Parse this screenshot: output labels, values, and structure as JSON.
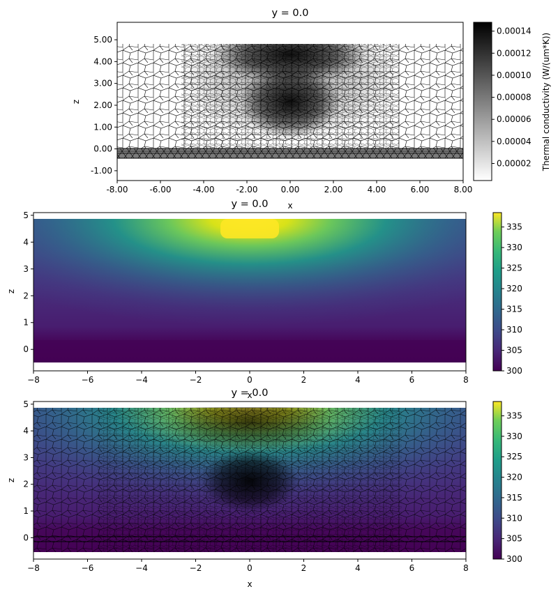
{
  "chart_data": [
    {
      "type": "heatmap",
      "title": "y = 0.0",
      "xlabel": "x",
      "ylabel": "z",
      "xlim": [
        -8,
        8
      ],
      "ylim": [
        -1.45,
        5.8
      ],
      "xticks": [
        "-8.00",
        "-6.00",
        "-4.00",
        "-2.00",
        "0.00",
        "2.00",
        "4.00",
        "6.00",
        "8.00"
      ],
      "yticks": [
        "-1.00",
        "0.00",
        "1.00",
        "2.00",
        "3.00",
        "4.00",
        "5.00"
      ],
      "colorbar": {
        "label": "Thermal conductivity (W/(um*K))",
        "range": [
          4.5e-06,
          0.000148
        ],
        "ticks": [
          "0.00002",
          "0.00004",
          "0.00006",
          "0.00008",
          "0.00010",
          "0.00012",
          "0.00014"
        ],
        "colormap": "gray_r"
      },
      "mesh": "triangular mesh, dense near (0, 4.5) and (0, 2), layered substrate z -0.45 to 0",
      "regions": [
        {
          "zmin": -0.45,
          "zmax": 0.0,
          "value": 7e-05
        },
        {
          "zmin": 0.0,
          "zmax": 4.8,
          "value": 4.5e-06
        }
      ]
    },
    {
      "type": "heatmap",
      "title": "y = 0.0",
      "xlabel": "x",
      "ylabel": "z",
      "xlim": [
        -8,
        8
      ],
      "ylim": [
        -0.8,
        5.1
      ],
      "xticks": [
        "−8",
        "−6",
        "−4",
        "−2",
        "0",
        "2",
        "4",
        "6",
        "8"
      ],
      "yticks": [
        "0",
        "1",
        "2",
        "3",
        "4",
        "5"
      ],
      "colorbar": {
        "label": "",
        "range": [
          300,
          338.5
        ],
        "ticks": [
          "300",
          "305",
          "310",
          "315",
          "320",
          "325",
          "330",
          "335"
        ],
        "colormap": "viridis"
      },
      "field": {
        "ambient": 300,
        "peak": 338.5,
        "hotspot_x": 0,
        "hotspot_z": 4.4,
        "hotspot_halfwidth": 1.1,
        "zmin": -0.5,
        "zmax": 4.8
      }
    },
    {
      "type": "heatmap",
      "title": "y = 0.0",
      "xlabel": "x",
      "ylabel": "z",
      "xlim": [
        -8,
        8
      ],
      "ylim": [
        -0.8,
        5.1
      ],
      "xticks": [
        "−8",
        "−6",
        "−4",
        "−2",
        "0",
        "2",
        "4",
        "6",
        "8"
      ],
      "yticks": [
        "0",
        "1",
        "2",
        "3",
        "4",
        "5"
      ],
      "colorbar": {
        "label": "",
        "range": [
          300,
          338.5
        ],
        "ticks": [
          "300",
          "305",
          "310",
          "315",
          "320",
          "325",
          "330",
          "335"
        ],
        "colormap": "viridis"
      },
      "mesh": "temperature field with triangular mesh overlay"
    }
  ]
}
